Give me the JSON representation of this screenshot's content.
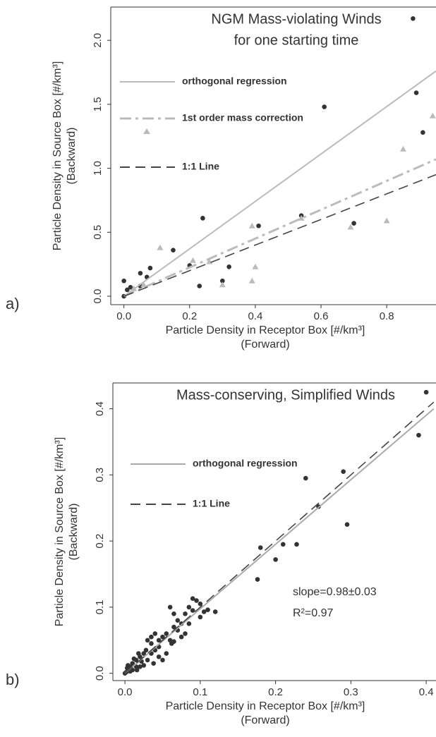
{
  "chart_data": [
    {
      "type": "scatter",
      "panel_label": "a)",
      "title": "NGM Mass-violating Winds",
      "subtitle": "for one starting time",
      "xlabel": "Particle Density in Receptor Box [#/km³]",
      "xlabel_note": "(Forward)",
      "ylabel": "Particle Density in Source Box [#/km³]",
      "ylabel_note": "(Backward)",
      "xlim": [
        -0.04,
        0.95
      ],
      "ylim": [
        -0.066,
        2.26
      ],
      "xticks": [
        {
          "value": 0,
          "label": "0.0"
        },
        0.2,
        0.4,
        0.6,
        0.8
      ],
      "yticks": [
        {
          "value": 0,
          "label": "0.0"
        },
        0.5,
        {
          "value": 1,
          "label": "1.0"
        },
        1.5,
        {
          "value": 2,
          "label": "2.0"
        }
      ],
      "series": [
        {
          "marker": "circle",
          "color": "#333333",
          "x": [
            0.0,
            0.0,
            0.01,
            0.02,
            0.05,
            0.05,
            0.07,
            0.08,
            0.15,
            0.2,
            0.23,
            0.24,
            0.3,
            0.32,
            0.41,
            0.54,
            0.61,
            0.7,
            0.89,
            0.91,
            0.88
          ],
          "values": [
            0.12,
            0.0,
            0.05,
            0.07,
            0.18,
            0.08,
            0.15,
            0.22,
            0.36,
            0.24,
            0.08,
            0.61,
            0.12,
            0.23,
            0.55,
            0.63,
            1.48,
            0.57,
            1.59,
            1.28,
            2.17
          ]
        },
        {
          "name": "1st order mass correction",
          "marker": "triangle",
          "line_style": "dashdot",
          "color": "#bbbbbb",
          "x": [
            0.03,
            0.06,
            0.11,
            0.21,
            0.26,
            0.3,
            0.39,
            0.39,
            0.4,
            0.54,
            0.69,
            0.8,
            0.85,
            0.94
          ],
          "values": [
            0.06,
            0.09,
            0.38,
            0.28,
            0.27,
            0.09,
            0.12,
            0.55,
            0.23,
            0.61,
            0.54,
            0.59,
            1.15,
            1.41
          ],
          "fit_x": [
            0.0,
            0.95
          ],
          "fit_values": [
            0.0,
            1.07
          ]
        },
        {
          "name": "orthogonal regression",
          "line_style": "solid",
          "color": "#bbbbbb",
          "x": [
            0.0,
            0.95
          ],
          "values": [
            0.0,
            1.76
          ]
        },
        {
          "name": "1:1 Line",
          "line_style": "dashed",
          "color": "#444444",
          "x": [
            0.0,
            0.95
          ],
          "values": [
            0.0,
            0.95
          ]
        }
      ]
    },
    {
      "type": "scatter",
      "panel_label": "b)",
      "title": "Mass-conserving, Simplified Winds",
      "xlabel": "Particle Density in Receptor Box [#/km³]",
      "xlabel_note": "(Forward)",
      "ylabel": "Particle Density in Source Box [#/km³]",
      "ylabel_note": "(Backward)",
      "annotations": [
        "slope=0.98±0.03",
        "R²=0.97"
      ],
      "xlim": [
        -0.016,
        0.413
      ],
      "ylim": [
        -0.011,
        0.439
      ],
      "xticks": [
        {
          "value": 0,
          "label": "0.0"
        },
        0.1,
        0.2,
        0.3,
        0.4
      ],
      "yticks": [
        {
          "value": 0,
          "label": "0.0"
        },
        0.1,
        0.2,
        0.3,
        0.4
      ],
      "series": [
        {
          "marker": "circle",
          "color": "#333333",
          "x": [
            0.39,
            0.4,
            0.29,
            0.295,
            0.24,
            0.257,
            0.228,
            0.21,
            0.2,
            0.18,
            0.176,
            0.12,
            0.11,
            0.105,
            0.1,
            0.095,
            0.09,
            0.085,
            0.08,
            0.075,
            0.07,
            0.065,
            0.06,
            0.055,
            0.05,
            0.045,
            0.04,
            0.035,
            0.03,
            0.03,
            0.025,
            0.02,
            0.02,
            0.015,
            0.01,
            0.01,
            0.008,
            0.005,
            0.003,
            0.002,
            0.0,
            0.06,
            0.065,
            0.07,
            0.055,
            0.045,
            0.04,
            0.035,
            0.028,
            0.022,
            0.018,
            0.012,
            0.05,
            0.062,
            0.075,
            0.085,
            0.09,
            0.038,
            0.015,
            0.007,
            0.004,
            0.016,
            0.025,
            0.045,
            0.065,
            0.08,
            0.1,
            0.035
          ],
          "values": [
            0.36,
            0.425,
            0.305,
            0.225,
            0.295,
            0.252,
            0.195,
            0.195,
            0.172,
            0.19,
            0.142,
            0.093,
            0.096,
            0.093,
            0.085,
            0.11,
            0.113,
            0.1,
            0.09,
            0.075,
            0.065,
            0.07,
            0.05,
            0.03,
            0.055,
            0.04,
            0.035,
            0.03,
            0.05,
            0.02,
            0.03,
            0.025,
            0.01,
            0.02,
            0.015,
            0.005,
            0.01,
            0.005,
            0.008,
            0.002,
            0.0,
            0.1,
            0.09,
            0.08,
            0.06,
            0.05,
            0.06,
            0.045,
            0.035,
            0.018,
            0.03,
            0.022,
            0.02,
            0.045,
            0.055,
            0.075,
            0.095,
            0.015,
            0.01,
            0.003,
            0.012,
            0.005,
            0.012,
            0.025,
            0.048,
            0.06,
            0.105,
            0.055
          ]
        },
        {
          "name": "orthogonal regression",
          "line_style": "solid",
          "color": "#aaaaaa",
          "x": [
            0.0,
            0.41
          ],
          "values": [
            0.0,
            0.4
          ]
        },
        {
          "name": "1:1 Line",
          "line_style": "dashed",
          "color": "#444444",
          "x": [
            0.0,
            0.41
          ],
          "values": [
            0.0,
            0.41
          ]
        }
      ]
    }
  ]
}
